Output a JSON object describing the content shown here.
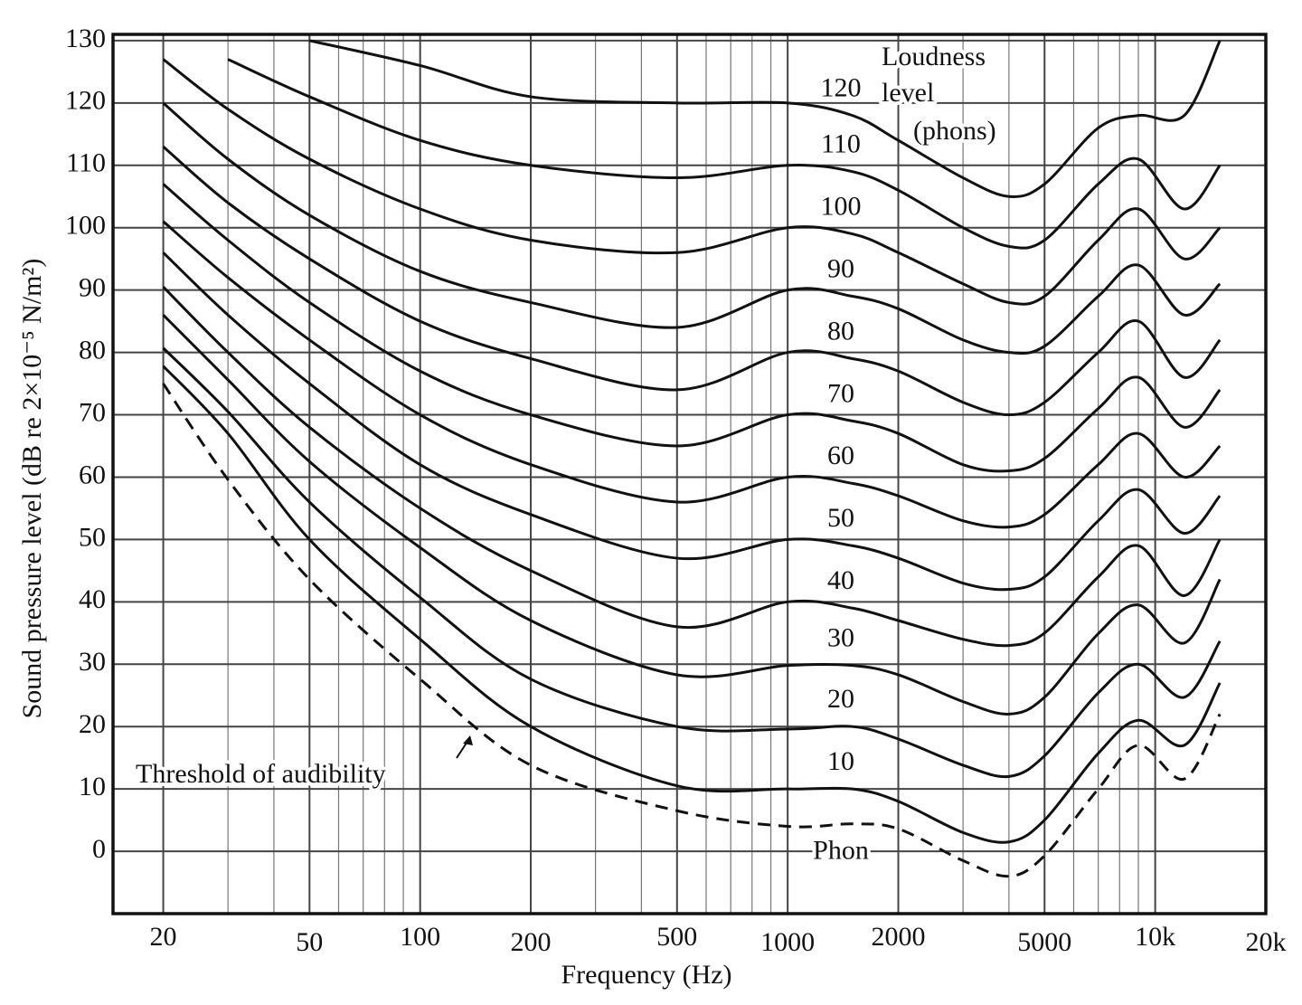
{
  "chart_data": {
    "type": "line",
    "x_label": "Frequency (Hz)",
    "y_label": "Sound pressure level (dB re 2×10⁻⁵ N/m²)",
    "log_x": true,
    "grid": true,
    "minor_grid": true,
    "xlim": [
      14.6,
      20000
    ],
    "ylim": [
      -10,
      131
    ],
    "xticks": [
      20,
      50,
      100,
      200,
      500,
      1000,
      2000,
      5000,
      {
        "value": 10000,
        "label": "10k"
      },
      {
        "value": 20000,
        "label": "20k"
      }
    ],
    "yticks": [
      0,
      10,
      20,
      30,
      40,
      50,
      60,
      70,
      80,
      90,
      100,
      110,
      120,
      130
    ],
    "legend_title": [
      "Loudness",
      "level",
      "(phons)"
    ],
    "annotation": "Threshold of audibility",
    "x": [
      20,
      30,
      50,
      100,
      200,
      500,
      1000,
      1500,
      2000,
      3000,
      4000,
      5000,
      7000,
      9000,
      12000,
      15000
    ],
    "series": [
      {
        "name": "Phon",
        "color": "#111111",
        "dashed": true,
        "values": [
          75,
          59.6,
          43.6,
          27.6,
          13.8,
          6.5,
          4,
          4.4,
          3.6,
          -1.5,
          -4,
          -0.7,
          10,
          17,
          11.6,
          22
        ]
      },
      {
        "name": "10",
        "color": "#111111",
        "values": [
          77.8,
          67,
          50,
          34,
          20,
          10.5,
          10,
          10,
          8,
          3,
          1.5,
          5,
          15.7,
          21,
          17,
          27
        ]
      },
      {
        "name": "20",
        "color": "#111111",
        "values": [
          80.7,
          70.5,
          56,
          40.7,
          27.6,
          20,
          19.6,
          20,
          18,
          13.8,
          12,
          15.3,
          25.4,
          30,
          24.7,
          33.7
        ]
      },
      {
        "name": "30",
        "color": "#111111",
        "values": [
          86,
          75.6,
          62.5,
          48.7,
          37,
          28.3,
          29.8,
          29.8,
          28.3,
          24,
          22,
          24.7,
          34.9,
          39.5,
          33.4,
          43.6
        ]
      },
      {
        "name": "40",
        "color": "#111111",
        "values": [
          90.5,
          80,
          68,
          55,
          45,
          36,
          40,
          39,
          37,
          34,
          33,
          35,
          44,
          49,
          41,
          50
        ]
      },
      {
        "name": "50",
        "color": "#111111",
        "values": [
          96,
          86,
          75,
          62,
          54,
          47,
          50,
          49,
          47,
          43,
          42,
          44,
          53,
          58,
          51,
          57
        ]
      },
      {
        "name": "60",
        "color": "#111111",
        "values": [
          101,
          92,
          82,
          70,
          62,
          56,
          60,
          59,
          57,
          53,
          52,
          54,
          62,
          67,
          60,
          65
        ]
      },
      {
        "name": "70",
        "color": "#111111",
        "values": [
          107,
          98,
          88,
          77,
          70,
          65,
          70,
          69,
          67,
          62,
          61,
          63,
          71,
          76,
          68,
          74
        ]
      },
      {
        "name": "80",
        "color": "#111111",
        "values": [
          113,
          104,
          95,
          85,
          79,
          74,
          80,
          79,
          77,
          72,
          70,
          72,
          80,
          85,
          76,
          82
        ]
      },
      {
        "name": "90",
        "color": "#111111",
        "values": [
          120,
          111,
          102,
          93,
          88,
          84,
          90,
          89,
          87,
          82,
          80,
          81,
          89,
          94,
          86,
          91
        ]
      },
      {
        "name": "100",
        "color": "#111111",
        "values": [
          127,
          119,
          111,
          103,
          98,
          96,
          100,
          99,
          96,
          91,
          88,
          89,
          98,
          103,
          95,
          100
        ]
      },
      {
        "name": "110",
        "color": "#111111",
        "values": [
          null,
          127,
          121,
          114,
          110,
          108,
          110,
          109,
          106,
          100,
          97,
          98,
          107,
          111,
          103,
          110
        ]
      },
      {
        "name": "120",
        "color": "#111111",
        "values": [
          null,
          null,
          130,
          126,
          121,
          120,
          120,
          118,
          114,
          108,
          105,
          107,
          116,
          118,
          118,
          130
        ]
      }
    ]
  }
}
